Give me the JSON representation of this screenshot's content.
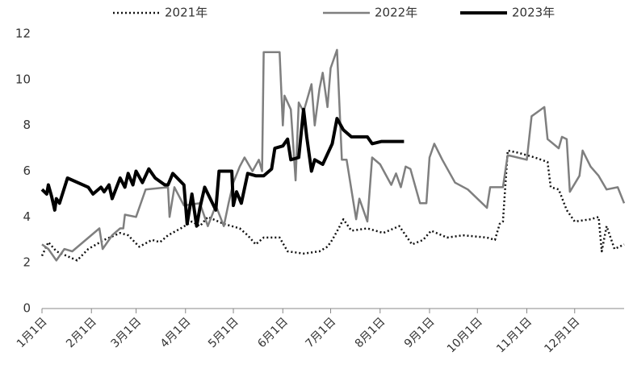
{
  "chart_data": {
    "type": "line",
    "xlim": [
      1,
      366
    ],
    "xticks": [
      {
        "value": 1,
        "label": "1月1日"
      },
      {
        "value": 32,
        "label": "2月1日"
      },
      {
        "value": 60,
        "label": "3月1日"
      },
      {
        "value": 91,
        "label": "4月1日"
      },
      {
        "value": 121,
        "label": "5月1日"
      },
      {
        "value": 152,
        "label": "6月1日"
      },
      {
        "value": 182,
        "label": "7月1日"
      },
      {
        "value": 213,
        "label": "8月1日"
      },
      {
        "value": 244,
        "label": "9月1日"
      },
      {
        "value": 274,
        "label": "10月1日"
      },
      {
        "value": 305,
        "label": "11月1日"
      },
      {
        "value": 335,
        "label": "12月1日"
      }
    ],
    "ylim": [
      0,
      12
    ],
    "yticks": [
      0,
      2,
      4,
      6,
      8,
      10,
      12
    ],
    "legend": "top",
    "series": [
      {
        "name": "2021年",
        "color": "#111111",
        "line_style": "dotted",
        "line_width": 2.5,
        "x": [
          1,
          5,
          10,
          23,
          30,
          40,
          50,
          55,
          62,
          70,
          75,
          80,
          88,
          95,
          100,
          105,
          115,
          125,
          130,
          135,
          140,
          150,
          155,
          165,
          175,
          180,
          183,
          187,
          190,
          195,
          205,
          215,
          225,
          233,
          240,
          245,
          255,
          265,
          280,
          285,
          288,
          290,
          293,
          300,
          310,
          318,
          320,
          325,
          330,
          335,
          345,
          350,
          352,
          355,
          360,
          366
        ],
        "values": [
          2.3,
          2.9,
          2.5,
          2.1,
          2.6,
          3.0,
          3.3,
          3.2,
          2.7,
          3.0,
          2.9,
          3.2,
          3.5,
          3.8,
          3.6,
          4.0,
          3.7,
          3.5,
          3.2,
          2.8,
          3.1,
          3.1,
          2.5,
          2.4,
          2.5,
          2.7,
          3.0,
          3.5,
          3.9,
          3.4,
          3.5,
          3.3,
          3.6,
          2.8,
          3.0,
          3.4,
          3.1,
          3.2,
          3.1,
          3.0,
          3.7,
          3.8,
          6.9,
          6.8,
          6.6,
          6.4,
          5.3,
          5.2,
          4.3,
          3.8,
          3.9,
          4.0,
          2.5,
          3.6,
          2.6,
          2.8
        ]
      },
      {
        "name": "2022年",
        "color": "#7f7f7f",
        "line_style": "solid",
        "line_width": 2.5,
        "x": [
          1,
          5,
          10,
          15,
          20,
          37,
          39,
          45,
          50,
          52,
          53,
          60,
          66,
          80,
          81,
          84,
          90,
          100,
          105,
          110,
          115,
          118,
          121,
          125,
          128,
          133,
          137,
          139,
          140,
          150,
          152,
          153,
          157,
          160,
          162,
          165,
          170,
          172,
          175,
          177,
          180,
          182,
          186,
          189,
          192,
          198,
          200,
          205,
          208,
          213,
          220,
          223,
          226,
          229,
          232,
          238,
          242,
          244,
          247,
          252,
          260,
          268,
          280,
          282,
          290,
          293,
          305,
          308,
          312,
          316,
          318,
          325,
          327,
          330,
          332,
          338,
          340,
          345,
          350,
          355,
          362,
          366
        ],
        "values": [
          2.8,
          2.6,
          2.1,
          2.6,
          2.5,
          3.5,
          2.6,
          3.2,
          3.5,
          3.5,
          4.1,
          4.0,
          5.2,
          5.3,
          4.0,
          5.3,
          4.5,
          4.6,
          3.6,
          4.5,
          3.6,
          4.6,
          5.5,
          6.2,
          6.6,
          6.0,
          6.5,
          6.0,
          11.2,
          11.2,
          8.0,
          9.3,
          8.7,
          5.6,
          9.0,
          8.6,
          9.8,
          8.0,
          9.6,
          10.3,
          8.8,
          10.5,
          11.3,
          6.5,
          6.5,
          3.9,
          4.8,
          3.8,
          6.6,
          6.3,
          5.4,
          5.9,
          5.3,
          6.2,
          6.1,
          4.6,
          4.6,
          6.6,
          7.2,
          6.5,
          5.5,
          5.2,
          4.4,
          5.3,
          5.3,
          6.7,
          6.5,
          8.4,
          8.6,
          8.8,
          7.4,
          7.0,
          7.5,
          7.4,
          5.1,
          5.8,
          6.9,
          6.2,
          5.8,
          5.2,
          5.3,
          4.6
        ]
      },
      {
        "name": "2023年",
        "color": "#000000",
        "line_style": "solid",
        "line_width": 4,
        "x": [
          1,
          4,
          5,
          7,
          9,
          10,
          12,
          17,
          30,
          33,
          38,
          40,
          43,
          45,
          50,
          53,
          55,
          58,
          60,
          64,
          68,
          72,
          78,
          80,
          83,
          90,
          92,
          95,
          98,
          100,
          103,
          110,
          112,
          120,
          121,
          123,
          126,
          130,
          135,
          140,
          145,
          147,
          152,
          155,
          157,
          162,
          165,
          167,
          170,
          172,
          177,
          183,
          186,
          190,
          195,
          205,
          208,
          214,
          228
        ],
        "values": [
          5.2,
          5.0,
          5.4,
          4.9,
          4.3,
          4.8,
          4.6,
          5.7,
          5.3,
          5.0,
          5.3,
          5.1,
          5.4,
          4.8,
          5.7,
          5.3,
          5.9,
          5.4,
          6.0,
          5.5,
          6.1,
          5.7,
          5.4,
          5.4,
          5.9,
          5.4,
          3.7,
          5.0,
          3.6,
          4.4,
          5.3,
          4.3,
          6.0,
          6.0,
          4.5,
          5.1,
          4.6,
          5.9,
          5.8,
          5.8,
          6.1,
          7.0,
          7.1,
          7.4,
          6.5,
          6.6,
          8.7,
          7.5,
          6.0,
          6.5,
          6.3,
          7.2,
          8.3,
          7.8,
          7.5,
          7.5,
          7.2,
          7.3,
          7.3
        ]
      }
    ]
  }
}
